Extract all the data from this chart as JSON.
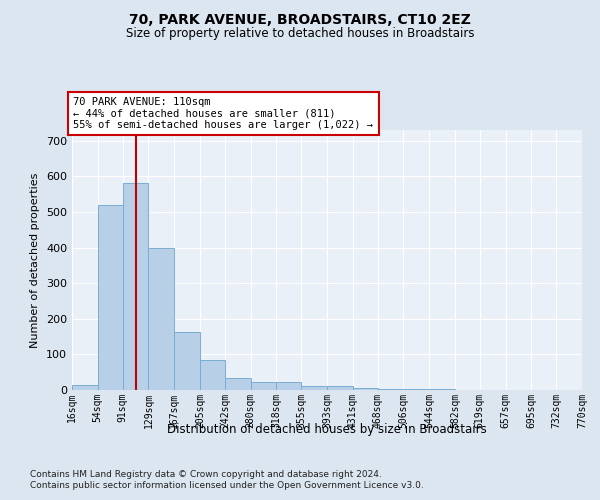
{
  "title1": "70, PARK AVENUE, BROADSTAIRS, CT10 2EZ",
  "title2": "Size of property relative to detached houses in Broadstairs",
  "xlabel": "Distribution of detached houses by size in Broadstairs",
  "ylabel": "Number of detached properties",
  "bar_edges": [
    16,
    54,
    91,
    129,
    167,
    205,
    242,
    280,
    318,
    355,
    393,
    431,
    468,
    506,
    544,
    582,
    619,
    657,
    695,
    732,
    770
  ],
  "bar_heights": [
    15,
    520,
    580,
    400,
    163,
    85,
    33,
    22,
    22,
    10,
    12,
    7,
    4,
    2,
    2,
    1,
    1,
    1,
    1,
    1
  ],
  "bar_color": "#b8cfe8",
  "bar_edge_color": "#7aadd4",
  "property_line_x": 110,
  "property_line_color": "#c00000",
  "annotation_line1": "70 PARK AVENUE: 110sqm",
  "annotation_line2": "← 44% of detached houses are smaller (811)",
  "annotation_line3": "55% of semi-detached houses are larger (1,022) →",
  "annotation_box_facecolor": "#ffffff",
  "annotation_box_edgecolor": "#cc0000",
  "ylim": [
    0,
    730
  ],
  "yticks": [
    0,
    100,
    200,
    300,
    400,
    500,
    600,
    700
  ],
  "footnote1": "Contains HM Land Registry data © Crown copyright and database right 2024.",
  "footnote2": "Contains public sector information licensed under the Open Government Licence v3.0.",
  "bg_color": "#dce6f0",
  "plot_bg_color": "#eaf0f8",
  "grid_color": "#ffffff"
}
